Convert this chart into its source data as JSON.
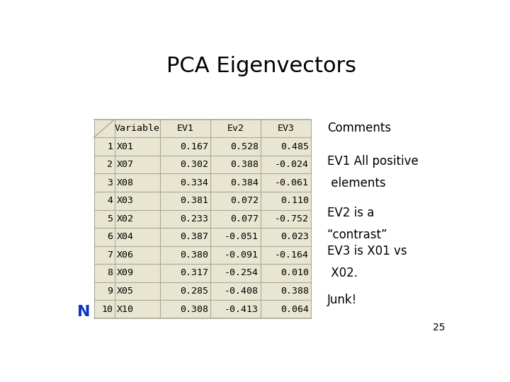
{
  "title": "PCA Eigenvectors",
  "background_color": "#ffffff",
  "table_bg_color": "#e8e5d0",
  "col_headers": [
    "",
    "Variable",
    "EV1",
    "Ev2",
    "EV3"
  ],
  "rows": [
    [
      "1",
      "X01",
      "0.167",
      "0.528",
      "0.485"
    ],
    [
      "2",
      "X07",
      "0.302",
      "0.388",
      "-0.024"
    ],
    [
      "3",
      "X08",
      "0.334",
      "0.384",
      "-0.061"
    ],
    [
      "4",
      "X03",
      "0.381",
      "0.072",
      "0.110"
    ],
    [
      "5",
      "X02",
      "0.233",
      "0.077",
      "-0.752"
    ],
    [
      "6",
      "X04",
      "0.387",
      "-0.051",
      "0.023"
    ],
    [
      "7",
      "X06",
      "0.380",
      "-0.091",
      "-0.164"
    ],
    [
      "8",
      "X09",
      "0.317",
      "-0.254",
      "0.010"
    ],
    [
      "9",
      "X05",
      "0.285",
      "-0.408",
      "0.388"
    ],
    [
      "10",
      "X10",
      "0.308",
      "-0.413",
      "0.064"
    ]
  ],
  "n_label": "N",
  "comment_lines": [
    [
      "Comments"
    ],
    [
      "EV1 All positive",
      " elements"
    ],
    [
      "EV2 is a",
      "“contrast”"
    ],
    [
      "EV3 is X01 vs",
      " X02."
    ],
    [
      "Junk!"
    ]
  ],
  "page_number": "25",
  "title_fontsize": 22,
  "table_fontsize": 9.5,
  "comments_fontsize": 12,
  "grid_color": "#aaa99a",
  "n_color": "#1133cc"
}
